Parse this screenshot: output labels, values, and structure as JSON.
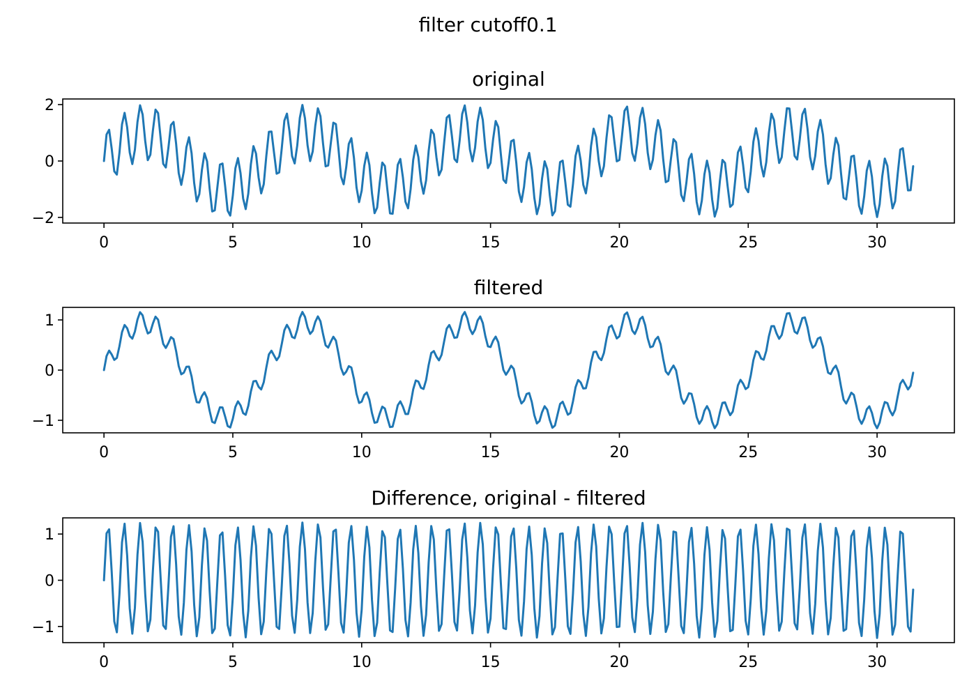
{
  "figure": {
    "suptitle": "filter cutoff0.1"
  },
  "style": {
    "line_color": "#1f77b4",
    "axis_color": "#000000",
    "background": "#ffffff"
  },
  "chart_data": [
    {
      "type": "line",
      "title": "original",
      "xlabel": "",
      "ylabel": "",
      "xlim": [
        -1.6,
        33.0
      ],
      "ylim": [
        -2.2,
        2.2
      ],
      "xticks": [
        0,
        5,
        10,
        15,
        20,
        25,
        30
      ],
      "yticks": [
        -2,
        0,
        2
      ],
      "xtick_labels": [
        "0",
        "5",
        "10",
        "15",
        "20",
        "25",
        "30"
      ],
      "ytick_labels": [
        "−2",
        "0",
        "2"
      ],
      "grid": false,
      "series": [
        {
          "x_start": 0,
          "x_end": 31.4,
          "points": 315,
          "components": [
            {
              "amplitude": 1,
              "frequency": 0.159155
            },
            {
              "amplitude": 1,
              "frequency": 1.5915
            }
          ]
        }
      ]
    },
    {
      "type": "line",
      "title": "filtered",
      "xlabel": "",
      "ylabel": "",
      "xlim": [
        -1.6,
        33.0
      ],
      "ylim": [
        -1.25,
        1.25
      ],
      "xticks": [
        0,
        5,
        10,
        15,
        20,
        25,
        30
      ],
      "yticks": [
        -1,
        0,
        1
      ],
      "xtick_labels": [
        "0",
        "5",
        "10",
        "15",
        "20",
        "25",
        "30"
      ],
      "ytick_labels": [
        "−1",
        "0",
        "1"
      ],
      "grid": false,
      "series": [
        {
          "x_start": 0,
          "x_end": 31.4,
          "points": 315,
          "components": [
            {
              "amplitude": 0.95,
              "frequency": 0.159155
            },
            {
              "amplitude": 0.22,
              "frequency": 1.5915
            }
          ]
        }
      ]
    },
    {
      "type": "line",
      "title": "Difference, original - filtered",
      "xlabel": "",
      "ylabel": "",
      "xlim": [
        -1.6,
        33.0
      ],
      "ylim": [
        -1.35,
        1.35
      ],
      "xticks": [
        0,
        5,
        10,
        15,
        20,
        25,
        30
      ],
      "yticks": [
        -1,
        0,
        1
      ],
      "xtick_labels": [
        "0",
        "5",
        "10",
        "15",
        "20",
        "25",
        "30"
      ],
      "ytick_labels": [
        "−1",
        "0",
        "1"
      ],
      "grid": false,
      "series": [
        {
          "x_start": 0,
          "x_end": 31.4,
          "points": 315,
          "components": [
            {
              "amplitude": 0.05,
              "frequency": 0.159155
            },
            {
              "amplitude": 1.2,
              "frequency": 1.5915
            }
          ]
        }
      ]
    }
  ]
}
